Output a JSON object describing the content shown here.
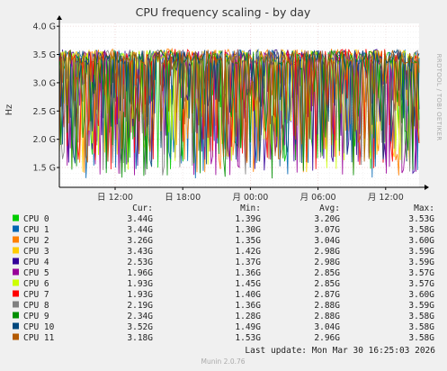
{
  "chart_data": {
    "type": "line",
    "title": "CPU frequency scaling - by day",
    "ylabel": "Hz",
    "ylim": [
      1.15,
      4.05
    ],
    "yticks": [
      1.5,
      2.0,
      2.5,
      3.0,
      3.5,
      4.0
    ],
    "ytick_labels": [
      "1.5 G",
      "2.0 G",
      "2.5 G",
      "3.0 G",
      "3.5 G",
      "4.0 G"
    ],
    "x_tick_labels": [
      "日 12:00",
      "日 18:00",
      "月 00:00",
      "月 06:00",
      "月 12:00"
    ],
    "side_label": "RRDTOOL / TOBI OETIKER",
    "grid": true,
    "legend_headers": [
      "Cur:",
      "Min:",
      "Avg:",
      "Max:"
    ],
    "series": [
      {
        "name": "CPU 0",
        "color": "#00cc00",
        "cur": "3.44G",
        "min": "1.39G",
        "avg": "3.20G",
        "max": "3.53G"
      },
      {
        "name": "CPU 1",
        "color": "#0066b3",
        "cur": "3.44G",
        "min": "1.30G",
        "avg": "3.07G",
        "max": "3.58G"
      },
      {
        "name": "CPU 2",
        "color": "#ff8000",
        "cur": "3.26G",
        "min": "1.35G",
        "avg": "3.04G",
        "max": "3.60G"
      },
      {
        "name": "CPU 3",
        "color": "#ffcc00",
        "cur": "3.43G",
        "min": "1.42G",
        "avg": "2.98G",
        "max": "3.59G"
      },
      {
        "name": "CPU 4",
        "color": "#330099",
        "cur": "2.53G",
        "min": "1.37G",
        "avg": "2.98G",
        "max": "3.59G"
      },
      {
        "name": "CPU 5",
        "color": "#990099",
        "cur": "1.96G",
        "min": "1.36G",
        "avg": "2.85G",
        "max": "3.57G"
      },
      {
        "name": "CPU 6",
        "color": "#ccff00",
        "cur": "1.93G",
        "min": "1.45G",
        "avg": "2.85G",
        "max": "3.57G"
      },
      {
        "name": "CPU 7",
        "color": "#ff0000",
        "cur": "1.93G",
        "min": "1.40G",
        "avg": "2.87G",
        "max": "3.60G"
      },
      {
        "name": "CPU 8",
        "color": "#808080",
        "cur": "2.19G",
        "min": "1.36G",
        "avg": "2.88G",
        "max": "3.59G"
      },
      {
        "name": "CPU 9",
        "color": "#008f00",
        "cur": "2.34G",
        "min": "1.28G",
        "avg": "2.88G",
        "max": "3.58G"
      },
      {
        "name": "CPU 10",
        "color": "#00487d",
        "cur": "3.52G",
        "min": "1.49G",
        "avg": "3.04G",
        "max": "3.58G"
      },
      {
        "name": "CPU 11",
        "color": "#b35a00",
        "cur": "3.18G",
        "min": "1.53G",
        "avg": "2.96G",
        "max": "3.58G"
      }
    ],
    "last_update": "Last update: Mon Mar 30 16:25:03 2026",
    "footer": "Munin 2.0.76"
  }
}
